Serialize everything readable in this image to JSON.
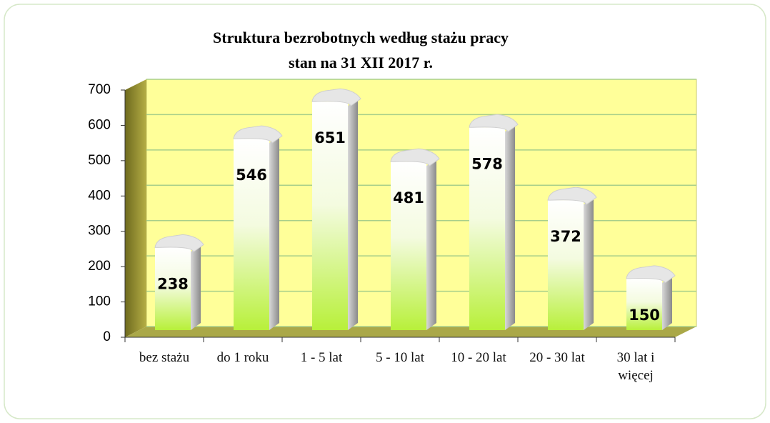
{
  "chart_data": {
    "type": "bar",
    "title": "Struktura bezrobotnych według stażu pracy",
    "subtitle": "stan na 31 XII 2017  r.",
    "categories": [
      "bez stażu",
      "do 1 roku",
      "1 - 5 lat",
      "5 - 10 lat",
      "10 - 20 lat",
      "20 - 30 lat",
      "30 lat i więcej"
    ],
    "values": [
      238,
      546,
      651,
      481,
      578,
      372,
      150
    ],
    "color": "#b8f03a",
    "ylim": [
      0,
      700
    ],
    "yticks": [
      0,
      100,
      200,
      300,
      400,
      500,
      600,
      700
    ],
    "grid": true
  }
}
